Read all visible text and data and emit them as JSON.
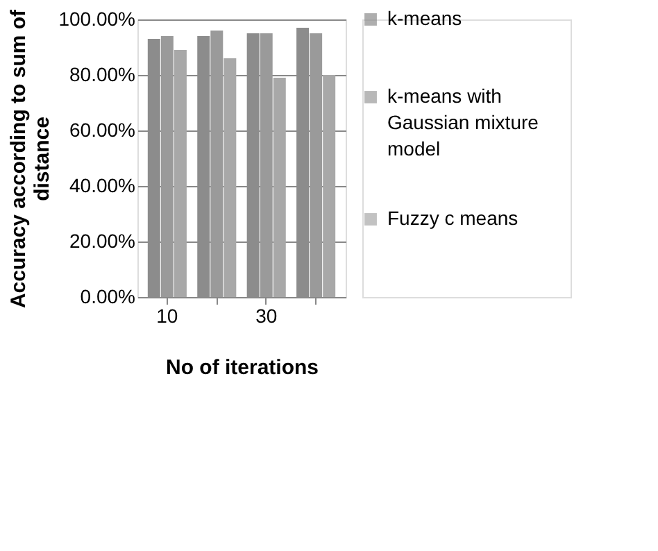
{
  "chart_data": {
    "type": "bar",
    "xlabel": "No of iterations",
    "ylabel": "Accuracy according to sum of distance",
    "categories": [
      "10",
      null,
      "30",
      null
    ],
    "series": [
      {
        "name": "k-means",
        "color": "#8c8c8c",
        "values": [
          93,
          94,
          95,
          97
        ]
      },
      {
        "name": "k-means with Gaussian mixture model",
        "color": "#9a9a9a",
        "values": [
          94,
          96,
          95,
          95
        ]
      },
      {
        "name": "Fuzzy c means",
        "color": "#a8a8a8",
        "values": [
          89,
          86,
          79,
          80
        ]
      }
    ],
    "ylim": [
      0,
      100
    ],
    "yticks": [
      {
        "value": 0,
        "label": "0.00%"
      },
      {
        "value": 20,
        "label": "20.00%"
      },
      {
        "value": 40,
        "label": "40.00%"
      },
      {
        "value": 60,
        "label": "60.00%"
      },
      {
        "value": 80,
        "label": "80.00%"
      },
      {
        "value": 100,
        "label": "100.00%"
      }
    ],
    "grid": "y",
    "legend": "right"
  }
}
